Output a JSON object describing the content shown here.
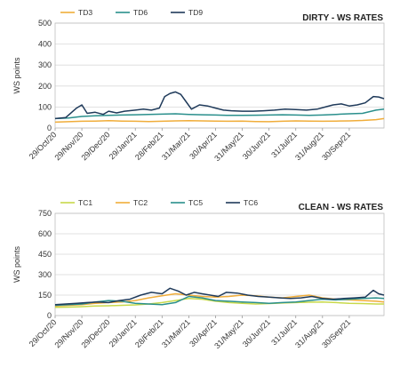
{
  "chart_data": [
    {
      "type": "line",
      "title": "DIRTY - WS RATES",
      "ylabel": "WS points",
      "xlabel": "",
      "ylim": [
        0,
        500
      ],
      "yticks": [
        "0",
        "100",
        "200",
        "300",
        "400",
        "500"
      ],
      "x_tick_labels": [
        "29/Oct/20",
        "29/Nov/20",
        "29/Dec/20",
        "29/Jan/21",
        "28/Feb/21",
        "31/Mar/21",
        "30/Apr/21",
        "31/May/21",
        "30/Jun/21",
        "31/Jul/21",
        "31/Aug/21",
        "30/Sep/21"
      ],
      "x_range_months": [
        0,
        12.3
      ],
      "grid": true,
      "legend_position": "top-left",
      "series": [
        {
          "name": "TD3",
          "color": "#f0ad3a",
          "x": [
            0,
            0.5,
            1,
            1.5,
            2,
            2.5,
            3,
            3.5,
            4,
            4.5,
            5,
            5.5,
            6,
            6.5,
            7,
            7.5,
            8,
            8.5,
            9,
            9.5,
            10,
            10.5,
            11,
            11.5,
            12,
            12.3
          ],
          "values": [
            28,
            30,
            32,
            33,
            35,
            33,
            32,
            31,
            32,
            34,
            35,
            34,
            33,
            32,
            33,
            31,
            30,
            32,
            34,
            33,
            32,
            33,
            34,
            36,
            40,
            45
          ]
        },
        {
          "name": "TD6",
          "color": "#2a8f8c",
          "x": [
            0,
            0.5,
            1,
            1.5,
            2,
            2.5,
            3,
            3.5,
            4,
            4.5,
            5,
            5.5,
            6,
            6.5,
            7,
            7.5,
            8,
            8.5,
            9,
            9.5,
            10,
            10.5,
            11,
            11.5,
            12,
            12.3
          ],
          "values": [
            45,
            48,
            55,
            58,
            60,
            62,
            63,
            65,
            66,
            68,
            65,
            63,
            62,
            60,
            60,
            61,
            62,
            63,
            62,
            60,
            62,
            65,
            68,
            70,
            85,
            90
          ]
        },
        {
          "name": "TD9",
          "color": "#1f3a5a",
          "x": [
            0,
            0.4,
            0.8,
            1.0,
            1.2,
            1.5,
            1.8,
            2.0,
            2.3,
            2.6,
            3.0,
            3.3,
            3.6,
            3.9,
            4.1,
            4.3,
            4.5,
            4.7,
            4.9,
            5.1,
            5.4,
            5.7,
            6.0,
            6.3,
            6.6,
            7.0,
            7.4,
            7.8,
            8.2,
            8.6,
            9.0,
            9.4,
            9.8,
            10.1,
            10.4,
            10.7,
            11.0,
            11.3,
            11.6,
            11.9,
            12.1,
            12.3
          ],
          "values": [
            45,
            50,
            95,
            110,
            70,
            75,
            65,
            80,
            72,
            80,
            85,
            90,
            85,
            95,
            150,
            165,
            172,
            160,
            125,
            90,
            110,
            105,
            95,
            85,
            82,
            80,
            80,
            82,
            85,
            90,
            88,
            85,
            90,
            100,
            110,
            115,
            105,
            110,
            120,
            150,
            148,
            140
          ]
        }
      ]
    },
    {
      "type": "line",
      "title": "CLEAN - WS RATES",
      "ylabel": "WS points",
      "xlabel": "",
      "ylim": [
        0,
        750
      ],
      "yticks": [
        "0",
        "150",
        "300",
        "450",
        "600",
        "750"
      ],
      "x_tick_labels": [
        "29/Oct/20",
        "29/Nov/20",
        "29/Dec/20",
        "29/Jan/21",
        "28/Feb/21",
        "31/Mar/21",
        "30/Apr/21",
        "31/May/21",
        "30/Jun/21",
        "31/Jul/21",
        "31/Aug/21",
        "30/Sep/21"
      ],
      "x_range_months": [
        0,
        12.3
      ],
      "grid": true,
      "legend_position": "top-left",
      "series": [
        {
          "name": "TC1",
          "color": "#c8d94a",
          "x": [
            0,
            0.5,
            1,
            1.5,
            2,
            2.5,
            3,
            3.5,
            4,
            4.5,
            5,
            5.5,
            6,
            6.5,
            7,
            7.5,
            8,
            8.5,
            9,
            9.5,
            10,
            10.5,
            11,
            11.5,
            12,
            12.3
          ],
          "values": [
            60,
            62,
            65,
            70,
            72,
            75,
            78,
            85,
            95,
            110,
            125,
            120,
            105,
            95,
            90,
            85,
            88,
            92,
            95,
            98,
            100,
            95,
            90,
            88,
            85,
            85
          ]
        },
        {
          "name": "TC2",
          "color": "#f0ad3a",
          "x": [
            0,
            0.5,
            1,
            1.5,
            2,
            2.5,
            3,
            3.5,
            4,
            4.5,
            5,
            5.5,
            6,
            6.5,
            7,
            7.5,
            8,
            8.5,
            9,
            9.5,
            10,
            10.5,
            11,
            11.5,
            12,
            12.3
          ],
          "values": [
            70,
            75,
            80,
            90,
            95,
            100,
            110,
            130,
            145,
            160,
            150,
            140,
            135,
            140,
            150,
            145,
            135,
            130,
            140,
            150,
            130,
            120,
            115,
            110,
            105,
            100
          ]
        },
        {
          "name": "TC5",
          "color": "#2a8f8c",
          "x": [
            0,
            0.5,
            1,
            1.5,
            2,
            2.5,
            3,
            3.5,
            4,
            4.5,
            5,
            5.5,
            6,
            6.5,
            7,
            7.5,
            8,
            8.5,
            9,
            9.5,
            10,
            10.5,
            11,
            11.5,
            12,
            12.3
          ],
          "values": [
            75,
            80,
            85,
            100,
            110,
            105,
            90,
            85,
            80,
            95,
            140,
            130,
            110,
            105,
            100,
            95,
            90,
            95,
            100,
            110,
            120,
            115,
            120,
            125,
            130,
            125
          ]
        },
        {
          "name": "TC6",
          "color": "#1f3a5a",
          "x": [
            0,
            0.4,
            0.8,
            1.2,
            1.6,
            2.0,
            2.4,
            2.8,
            3.2,
            3.6,
            4.0,
            4.3,
            4.6,
            4.9,
            5.2,
            5.5,
            5.8,
            6.1,
            6.4,
            6.8,
            7.2,
            7.6,
            8.0,
            8.4,
            8.8,
            9.2,
            9.6,
            10.0,
            10.4,
            10.8,
            11.2,
            11.6,
            11.9,
            12.1,
            12.3
          ],
          "values": [
            80,
            85,
            90,
            95,
            100,
            95,
            110,
            120,
            150,
            170,
            160,
            200,
            180,
            150,
            170,
            160,
            150,
            140,
            170,
            165,
            150,
            140,
            135,
            130,
            125,
            130,
            140,
            125,
            120,
            125,
            130,
            135,
            185,
            160,
            150
          ]
        }
      ]
    }
  ]
}
